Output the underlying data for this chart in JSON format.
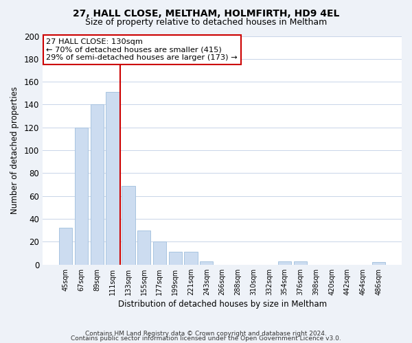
{
  "title": "27, HALL CLOSE, MELTHAM, HOLMFIRTH, HD9 4EL",
  "subtitle": "Size of property relative to detached houses in Meltham",
  "xlabel": "Distribution of detached houses by size in Meltham",
  "ylabel": "Number of detached properties",
  "categories": [
    "45sqm",
    "67sqm",
    "89sqm",
    "111sqm",
    "133sqm",
    "155sqm",
    "177sqm",
    "199sqm",
    "221sqm",
    "243sqm",
    "266sqm",
    "288sqm",
    "310sqm",
    "332sqm",
    "354sqm",
    "376sqm",
    "398sqm",
    "420sqm",
    "442sqm",
    "464sqm",
    "486sqm"
  ],
  "values": [
    32,
    120,
    140,
    151,
    69,
    30,
    20,
    11,
    11,
    3,
    0,
    0,
    0,
    0,
    3,
    3,
    0,
    0,
    0,
    0,
    2
  ],
  "bar_color": "#ccdcf0",
  "bar_edge_color": "#a8c4e0",
  "highlight_bar_index": 3,
  "highlight_line_color": "#cc0000",
  "annotation_text": "27 HALL CLOSE: 130sqm\n← 70% of detached houses are smaller (415)\n29% of semi-detached houses are larger (173) →",
  "annotation_box_color": "#ffffff",
  "annotation_box_edge_color": "#cc0000",
  "ylim": [
    0,
    200
  ],
  "yticks": [
    0,
    20,
    40,
    60,
    80,
    100,
    120,
    140,
    160,
    180,
    200
  ],
  "footer_line1": "Contains HM Land Registry data © Crown copyright and database right 2024.",
  "footer_line2": "Contains public sector information licensed under the Open Government Licence v3.0.",
  "background_color": "#eef2f8",
  "plot_bg_color": "#ffffff",
  "grid_color": "#c8d4e8",
  "title_fontsize": 10,
  "subtitle_fontsize": 9
}
